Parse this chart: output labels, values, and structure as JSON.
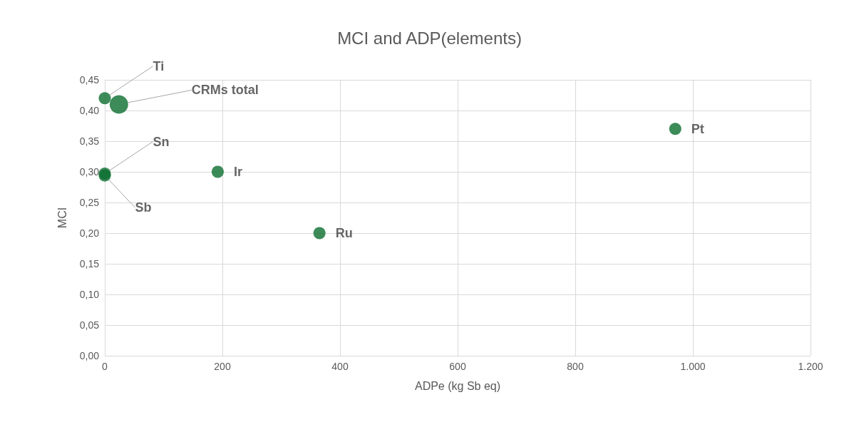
{
  "chart_data": {
    "type": "bubble",
    "title": "MCI and ADP(elements)",
    "xlabel": "ADPe (kg Sb eq)",
    "ylabel": "MCI",
    "series": [
      {
        "name": "Ti",
        "color": "#0b6e2f",
        "x": [
          0
        ],
        "values": [
          0.42
        ],
        "sizes": [
          0.43
        ]
      },
      {
        "name": "CRMs total",
        "color": "#0b6e2f",
        "x": [
          24
        ],
        "values": [
          0.41
        ],
        "sizes": [
          1
        ]
      },
      {
        "name": "Sn",
        "color": "#0b6e2f",
        "x": [
          0
        ],
        "values": [
          0.297
        ],
        "sizes": [
          0.43
        ]
      },
      {
        "name": "Sb",
        "color": "#0b6e2f",
        "x": [
          0
        ],
        "values": [
          0.294
        ],
        "sizes": [
          0.43
        ]
      },
      {
        "name": "Ir",
        "color": "#0b6e2f",
        "x": [
          192
        ],
        "values": [
          0.3
        ],
        "sizes": [
          0.43
        ]
      },
      {
        "name": "Ru",
        "color": "#0b6e2f",
        "x": [
          365
        ],
        "values": [
          0.2
        ],
        "sizes": [
          0.43
        ]
      },
      {
        "name": "Pt",
        "color": "#0b6e2f",
        "x": [
          970
        ],
        "values": [
          0.37
        ],
        "sizes": [
          0.43
        ]
      }
    ],
    "xlim": [
      0,
      1200
    ],
    "xticks": [
      0,
      200,
      400,
      600,
      800,
      {
        "value": 1000,
        "label": "1.000"
      },
      {
        "value": 1200,
        "label": "1.200"
      }
    ],
    "ylim": [
      0,
      0.45
    ],
    "yticks": [
      {
        "value": 0,
        "label": "0,00"
      },
      {
        "value": 0.05,
        "label": "0,05"
      },
      {
        "value": 0.1,
        "label": "0,10"
      },
      {
        "value": 0.15,
        "label": "0,15"
      },
      {
        "value": 0.2,
        "label": "0,20"
      },
      {
        "value": 0.25,
        "label": "0,25"
      },
      {
        "value": 0.3,
        "label": "0,30"
      },
      {
        "value": 0.35,
        "label": "0,35"
      },
      {
        "value": 0.4,
        "label": "0,40"
      },
      {
        "value": 0.45,
        "label": "0,45"
      }
    ],
    "grid": true,
    "marker": "circle"
  }
}
